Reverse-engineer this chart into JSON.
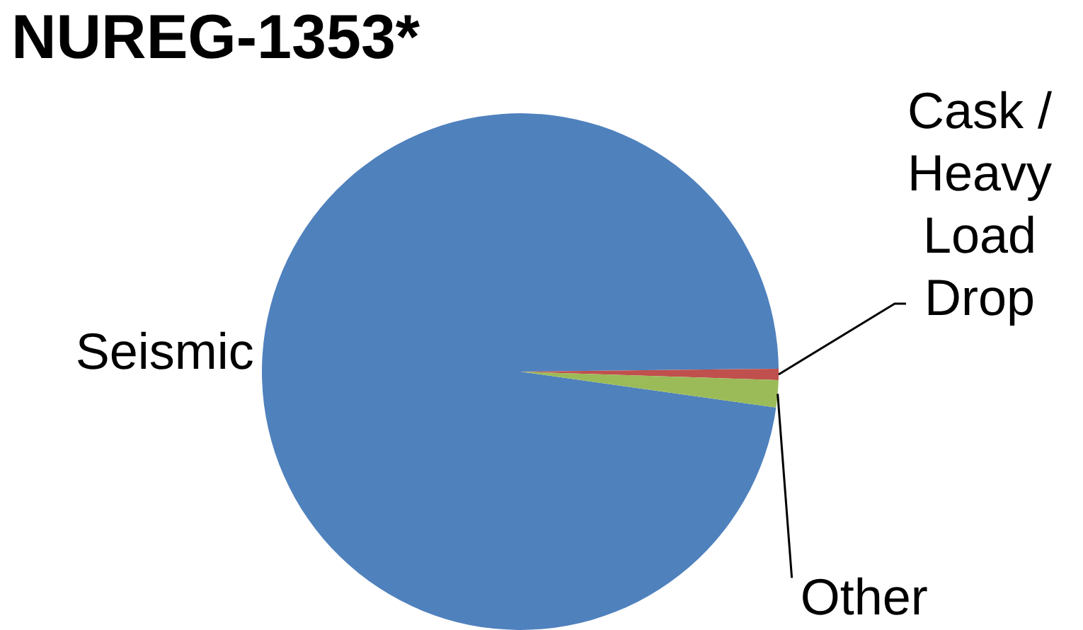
{
  "chart_data": {
    "type": "pie",
    "title": "NUREG-1353*",
    "categories": [
      "Seismic",
      "Cask / Heavy Load Drop",
      "Other"
    ],
    "values": [
      97.6,
      0.7,
      1.7
    ],
    "colors": [
      "#4f81bd",
      "#c0504d",
      "#9bbb59"
    ]
  }
}
